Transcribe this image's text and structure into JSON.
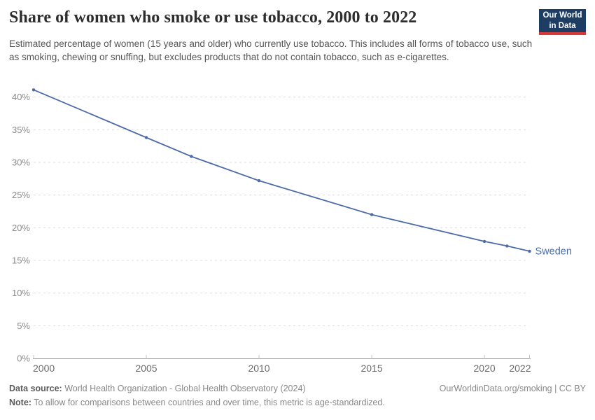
{
  "header": {
    "title": "Share of women who smoke or use tobacco, 2000 to 2022",
    "subtitle": "Estimated percentage of women (15 years and older) who currently use tobacco. This includes all forms of tobacco use, such as smoking, chewing or snuffing, but excludes products that do not contain tobacco, such as e-cigarettes.",
    "logo": {
      "line1": "Our World",
      "line2": "in Data",
      "bg": "#1d3d63",
      "stripe": "#d73a36"
    }
  },
  "chart_data": {
    "type": "line",
    "title": "Share of women who smoke or use tobacco, 2000 to 2022",
    "entity": "Sweden",
    "xlabel": "",
    "ylabel": "",
    "xlim": [
      2000,
      2022
    ],
    "ylim": [
      0,
      41.5
    ],
    "xticks": [
      2000,
      2005,
      2010,
      2015,
      2020,
      2022
    ],
    "yticks": [
      0,
      5,
      10,
      15,
      20,
      25,
      30,
      35,
      40
    ],
    "ytick_suffix": "%",
    "grid": "horizontal-dashed",
    "legend": "end-of-line-label",
    "colors": {
      "grid": "#dcdcdc",
      "axis": "#9a9a9a",
      "tick": "#c3c3c3",
      "ytick": "#8a8a8a",
      "xtick": "#6b6b6b"
    },
    "series": [
      {
        "name": "Sweden",
        "color": "#4c6ba8",
        "x": [
          2000,
          2005,
          2007,
          2010,
          2015,
          2020,
          2021,
          2022
        ],
        "y": [
          41.1,
          33.8,
          30.9,
          27.2,
          22.0,
          17.9,
          17.2,
          16.4
        ]
      }
    ]
  },
  "footer": {
    "datasource_label": "Data source:",
    "datasource_text": " World Health Organization - Global Health Observatory (2024)",
    "note_label": "Note:",
    "note_text": " To allow for comparisons between countries and over time, this metric is age-standardized.",
    "link": "OurWorldinData.org/smoking | CC BY"
  }
}
